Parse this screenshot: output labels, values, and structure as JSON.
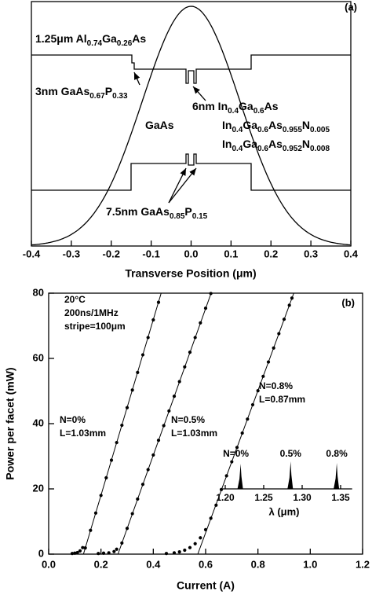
{
  "chart_data": [
    {
      "type": "band-diagram",
      "panel_label": "(a)",
      "xlabel": "Transverse Position (μm)",
      "xlim": [
        -0.4,
        0.4
      ],
      "xticks": [
        -0.4,
        -0.3,
        -0.2,
        -0.1,
        {
          "value": 0,
          "label": "0.0"
        },
        0.1,
        0.2,
        0.3,
        0.4
      ],
      "annotations": [
        {
          "parts": [
            "1.25μm Al",
            "0.74",
            "Ga",
            "0.26",
            "As"
          ]
        },
        {
          "parts": [
            "3nm GaAs",
            "0.67",
            "P",
            "0.33"
          ]
        },
        {
          "parts": [
            "6nm In",
            "0.4",
            "Ga",
            "0.6",
            "As"
          ]
        },
        {
          "parts": [
            "GaAs"
          ]
        },
        {
          "parts": [
            "In",
            "0.4",
            "Ga",
            "0.6",
            "As",
            "0.955",
            "N",
            "0.005"
          ]
        },
        {
          "parts": [
            "In",
            "0.4",
            "Ga",
            "0.6",
            "As",
            "0.952",
            "N",
            "0.008"
          ]
        },
        {
          "parts": [
            "7.5nm GaAs",
            "0.85",
            "P",
            "0.15"
          ]
        }
      ]
    },
    {
      "type": "scatter",
      "panel_label": "(b)",
      "xlabel": "Current (A)",
      "ylabel": "Power per facet (mW)",
      "xlim": [
        0,
        1.2
      ],
      "ylim": [
        0,
        80
      ],
      "xticks": [
        {
          "value": 0,
          "label": "0.0"
        },
        0.2,
        0.4,
        0.6,
        0.8,
        {
          "value": 1,
          "label": "1.0"
        },
        1.2
      ],
      "yticks": [
        0,
        20,
        40,
        60,
        80
      ],
      "notes": [
        "20°C",
        "200ns/1MHz",
        "stripe=100μm"
      ],
      "series": [
        {
          "name": "N=0%",
          "length": "L=1.03mm",
          "color": "#000000",
          "x": [
            0.09,
            0.1,
            0.11,
            0.12,
            0.13,
            0.14,
            0.16,
            0.18,
            0.2,
            0.22,
            0.24,
            0.26,
            0.28,
            0.3,
            0.32,
            0.34,
            0.36,
            0.38,
            0.4,
            0.42
          ],
          "values": [
            0.2,
            0.3,
            0.5,
            1,
            2,
            1.9,
            7.3,
            12.6,
            18.0,
            23.4,
            28.8,
            34.2,
            39.5,
            44.9,
            50.3,
            55.7,
            61.1,
            66.4,
            71.8,
            77.2
          ],
          "fit": {
            "x": [
              0.133,
              0.43
            ],
            "values": [
              0,
              80
            ]
          }
        },
        {
          "name": "N=0.5%",
          "length": "L=1.03mm",
          "color": "#000000",
          "x": [
            0.19,
            0.21,
            0.23,
            0.25,
            0.26,
            0.28,
            0.3,
            0.32,
            0.34,
            0.36,
            0.38,
            0.4,
            0.42,
            0.44,
            0.46,
            0.48,
            0.5,
            0.52,
            0.54,
            0.56,
            0.58,
            0.6,
            0.62
          ],
          "values": [
            0.2,
            0.3,
            0.4,
            0.8,
            1.5,
            3.4,
            7.9,
            12.4,
            16.9,
            21.4,
            25.9,
            30.4,
            34.9,
            39.4,
            43.9,
            48.4,
            52.9,
            57.4,
            61.9,
            66.4,
            70.9,
            75.4,
            79.9
          ],
          "fit": {
            "x": [
              0.265,
              0.621
            ],
            "values": [
              0,
              80
            ]
          }
        },
        {
          "name": "N=0.8%",
          "length": "L=0.87mm",
          "color": "#000000",
          "x": [
            0.45,
            0.48,
            0.5,
            0.52,
            0.54,
            0.56,
            0.58,
            0.6,
            0.62,
            0.64,
            0.66,
            0.68,
            0.7,
            0.72,
            0.74,
            0.76,
            0.78,
            0.8,
            0.82,
            0.84,
            0.86,
            0.88,
            0.9,
            0.92,
            0.93
          ],
          "values": [
            0.2,
            0.4,
            0.7,
            1.2,
            2.0,
            3.2,
            5.0,
            7.5,
            11,
            15,
            19.8,
            24.0,
            28.3,
            32.7,
            37.1,
            41.4,
            45.8,
            50.1,
            54.5,
            58.9,
            63.2,
            67.6,
            72.0,
            76.3,
            78.5
          ],
          "fit": {
            "x": [
              0.57,
              0.937
            ],
            "values": [
              0,
              80
            ]
          }
        }
      ],
      "inset": {
        "xlabel": "λ (μm)",
        "xlim": [
          1.195,
          1.365
        ],
        "xticks": [
          {
            "value": 1.2,
            "label": "1.20"
          },
          1.25,
          {
            "value": 1.3,
            "label": "1.30"
          },
          1.35
        ],
        "peaks": [
          1.22,
          1.285,
          1.345
        ],
        "peak_labels": [
          "N=0%",
          "0.5%",
          "0.8%"
        ]
      }
    }
  ]
}
